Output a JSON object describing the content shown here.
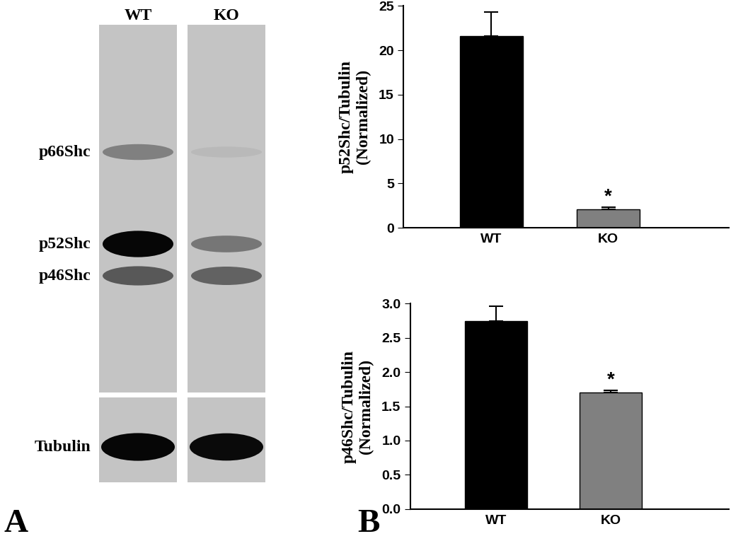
{
  "panel_labels": [
    "A",
    "B"
  ],
  "blot": {
    "lanes": [
      "WT",
      "KO"
    ],
    "bands": [
      {
        "name": "p66Shc",
        "intensity": [
          0.35,
          0.06
        ]
      },
      {
        "name": "p52Shc",
        "intensity": [
          0.97,
          0.4
        ]
      },
      {
        "name": "p46Shc",
        "intensity": [
          0.55,
          0.5
        ]
      }
    ],
    "loading_control": {
      "name": "Tubulin",
      "intensity": [
        0.97,
        0.95
      ]
    }
  },
  "chart_data": [
    {
      "type": "bar",
      "y_label": "p52Shc/Tubulin\n(Normalized)",
      "categories": [
        "WT",
        "KO"
      ],
      "values": [
        21.6,
        2.1
      ],
      "errors": [
        2.7,
        0.25
      ],
      "colors": [
        "#000000",
        "#808080"
      ],
      "ylim": [
        0,
        25
      ],
      "yticks": [
        0,
        5,
        10,
        15,
        20,
        25
      ],
      "annotations": [
        {
          "category": "KO",
          "text": "*"
        }
      ]
    },
    {
      "type": "bar",
      "y_label": "p46Shc/Tubulin\n(Normalized)",
      "categories": [
        "WT",
        "KO"
      ],
      "values": [
        2.74,
        1.7
      ],
      "errors": [
        0.22,
        0.03
      ],
      "colors": [
        "#000000",
        "#808080"
      ],
      "ylim": [
        0,
        3
      ],
      "yticks": [
        {
          "value": 0,
          "label": "0.0"
        },
        {
          "value": 0.5,
          "label": "0.5"
        },
        {
          "value": 1,
          "label": "1.0"
        },
        {
          "value": 1.5,
          "label": "1.5"
        },
        {
          "value": 2,
          "label": "2.0"
        },
        {
          "value": 2.5,
          "label": "2.5"
        },
        {
          "value": 3,
          "label": "3.0"
        }
      ],
      "annotations": [
        {
          "category": "KO",
          "text": "*"
        }
      ]
    }
  ]
}
